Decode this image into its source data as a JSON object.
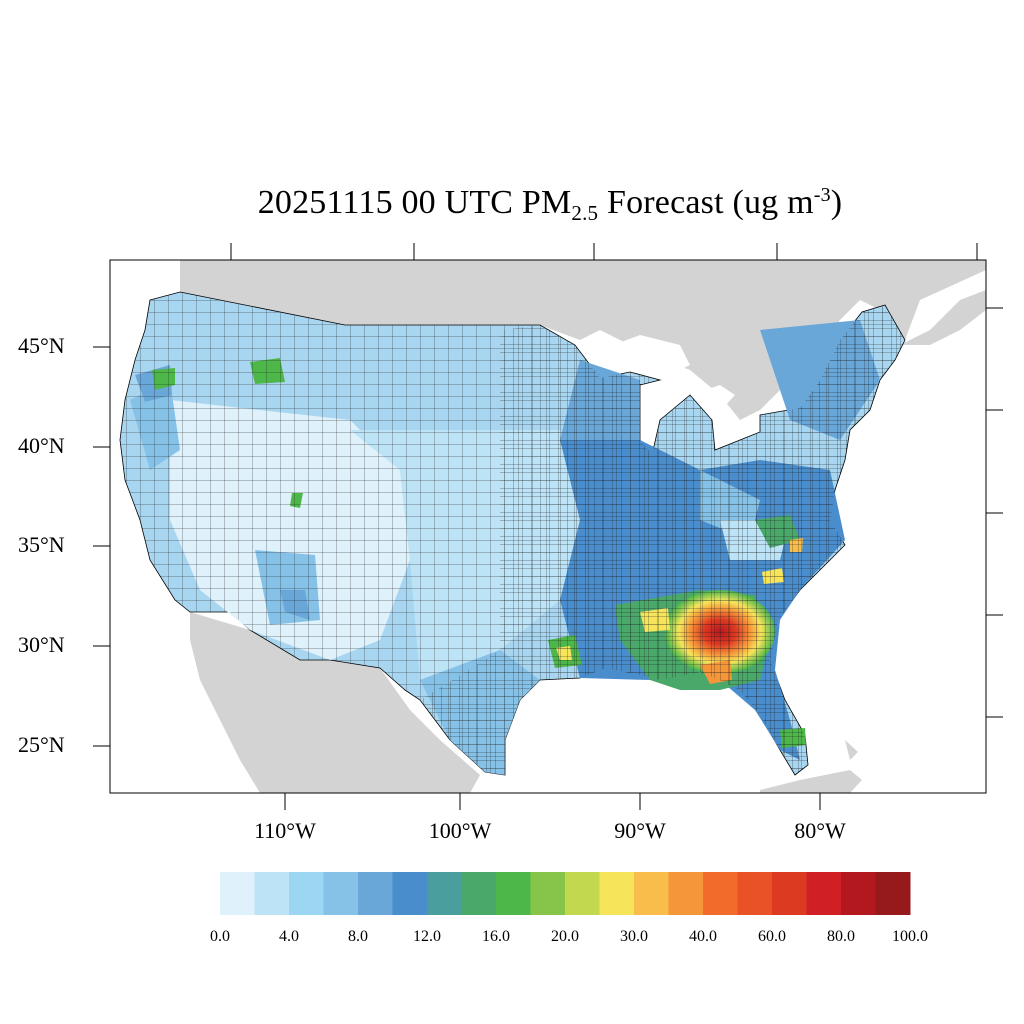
{
  "title": {
    "prefix": "20251115 00 UTC PM",
    "subscript": "2.5",
    "middle": " Forecast (ug m",
    "superscript": "-3",
    "suffix": ")"
  },
  "map": {
    "lat_labels": [
      "45°N",
      "40°N",
      "35°N",
      "30°N",
      "25°N"
    ],
    "lon_labels": [
      "110°W",
      "100°W",
      "90°W",
      "80°W"
    ],
    "land_outside_color": "#d3d3d3",
    "water_color": "#ffffff",
    "county_border_color": "#000000"
  },
  "colorbar": {
    "colors": [
      "#dff1fb",
      "#bde3f6",
      "#9bd7f3",
      "#86c2e8",
      "#6aa7d9",
      "#4a8dcc",
      "#4a9e9e",
      "#4aa86a",
      "#4db849",
      "#86c54a",
      "#c2d84f",
      "#f6e55a",
      "#f8bd4a",
      "#f6963b",
      "#f26b2a",
      "#e85226",
      "#dd3a22",
      "#d01f25",
      "#b4181f",
      "#961a1c"
    ],
    "labels": [
      "0.0",
      "4.0",
      "8.0",
      "12.0",
      "16.0",
      "20.0",
      "30.0",
      "40.0",
      "60.0",
      "80.0",
      "100.0"
    ]
  }
}
